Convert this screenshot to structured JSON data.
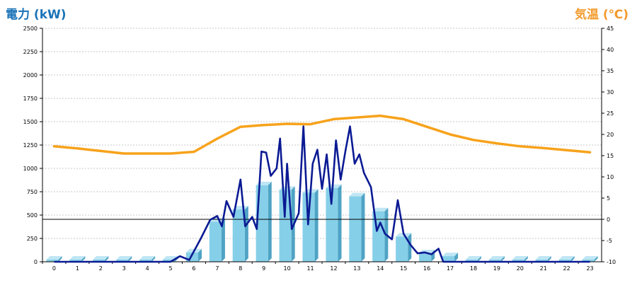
{
  "chart_data": {
    "type": "bar",
    "ylabel_left": "電力 (kW)",
    "ylabel_right": "気温 (℃)",
    "x_ticks": [
      "0",
      "1",
      "2",
      "3",
      "4",
      "5",
      "6",
      "7",
      "8",
      "9",
      "10",
      "11",
      "12",
      "13",
      "14",
      "15",
      "16",
      "17",
      "18",
      "19",
      "20",
      "21",
      "22",
      "23"
    ],
    "y_left": {
      "min": 0,
      "max": 2500,
      "ticks": [
        0,
        250,
        500,
        750,
        1000,
        1250,
        1500,
        1750,
        2000,
        2250,
        2500
      ]
    },
    "y_right": {
      "min": -10,
      "max": 45,
      "ticks": [
        -10,
        -5,
        0,
        5,
        10,
        15,
        20,
        25,
        30,
        35,
        40,
        45
      ]
    },
    "grid": true,
    "colors": {
      "bar": "#86cfe8",
      "bar_side": "#4fa3c4",
      "bar_top": "#bfe6f4",
      "power_line": "#0b1a93",
      "temp_line": "#f7a21b",
      "left_title": "#1a73b8",
      "right_title": "#f39a2b"
    },
    "series": [
      {
        "type": "bar",
        "axis": "left",
        "values": [
          0,
          0,
          0,
          0,
          0,
          0,
          100,
          430,
          560,
          820,
          770,
          740,
          790,
          700,
          540,
          270,
          90,
          60,
          0,
          0,
          0,
          0,
          0,
          0
        ]
      },
      {
        "type": "line",
        "axis": "left",
        "points": [
          [
            0,
            0
          ],
          [
            1,
            0
          ],
          [
            2,
            0
          ],
          [
            3,
            0
          ],
          [
            4,
            0
          ],
          [
            5,
            0
          ],
          [
            5.4,
            60
          ],
          [
            5.8,
            20
          ],
          [
            6.3,
            250
          ],
          [
            6.7,
            450
          ],
          [
            7,
            490
          ],
          [
            7.2,
            380
          ],
          [
            7.4,
            650
          ],
          [
            7.7,
            480
          ],
          [
            8,
            880
          ],
          [
            8.2,
            380
          ],
          [
            8.5,
            480
          ],
          [
            8.7,
            350
          ],
          [
            8.9,
            1180
          ],
          [
            9.1,
            1170
          ],
          [
            9.3,
            920
          ],
          [
            9.55,
            1000
          ],
          [
            9.7,
            1320
          ],
          [
            9.9,
            480
          ],
          [
            10,
            1050
          ],
          [
            10.2,
            350
          ],
          [
            10.5,
            520
          ],
          [
            10.7,
            1450
          ],
          [
            10.9,
            400
          ],
          [
            11.1,
            1050
          ],
          [
            11.3,
            1200
          ],
          [
            11.5,
            780
          ],
          [
            11.7,
            1150
          ],
          [
            11.9,
            620
          ],
          [
            12.1,
            1300
          ],
          [
            12.3,
            880
          ],
          [
            12.5,
            1180
          ],
          [
            12.7,
            1450
          ],
          [
            12.9,
            1050
          ],
          [
            13.1,
            1150
          ],
          [
            13.3,
            950
          ],
          [
            13.6,
            800
          ],
          [
            13.85,
            330
          ],
          [
            14,
            420
          ],
          [
            14.2,
            300
          ],
          [
            14.5,
            240
          ],
          [
            14.75,
            660
          ],
          [
            15,
            300
          ],
          [
            15.3,
            180
          ],
          [
            15.6,
            90
          ],
          [
            15.9,
            100
          ],
          [
            16.2,
            80
          ],
          [
            16.5,
            140
          ],
          [
            16.7,
            0
          ],
          [
            17,
            0
          ],
          [
            18,
            0
          ],
          [
            19,
            0
          ],
          [
            20,
            0
          ],
          [
            21,
            0
          ],
          [
            22,
            0
          ],
          [
            23,
            0
          ]
        ]
      },
      {
        "type": "line",
        "axis": "right",
        "points": [
          [
            0,
            17.2
          ],
          [
            1,
            16.7
          ],
          [
            2,
            16.1
          ],
          [
            3,
            15.5
          ],
          [
            4,
            15.5
          ],
          [
            5,
            15.5
          ],
          [
            6,
            15.9
          ],
          [
            7,
            19
          ],
          [
            8,
            21.8
          ],
          [
            9,
            22.2
          ],
          [
            10,
            22.5
          ],
          [
            11,
            22.4
          ],
          [
            12,
            23.6
          ],
          [
            13,
            24
          ],
          [
            14,
            24.4
          ],
          [
            15,
            23.6
          ],
          [
            16,
            21.8
          ],
          [
            17,
            20
          ],
          [
            18,
            18.7
          ],
          [
            19,
            17.9
          ],
          [
            20,
            17.2
          ],
          [
            21,
            16.8
          ],
          [
            22,
            16.3
          ],
          [
            23,
            15.8
          ]
        ]
      }
    ]
  }
}
